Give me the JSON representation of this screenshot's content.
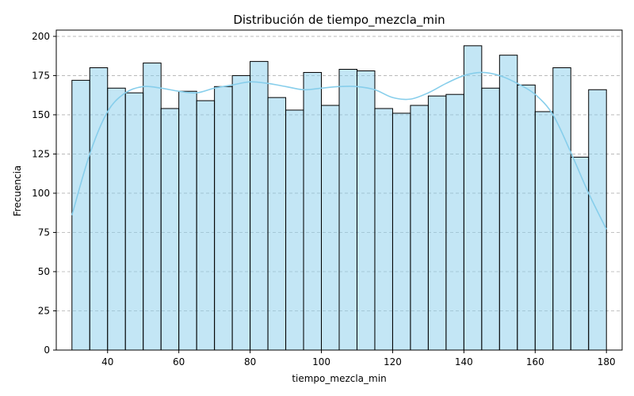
{
  "chart_data": {
    "type": "bar",
    "subtype": "histogram-with-kde",
    "title": "Distribución de tiempo_mezcla_min",
    "xlabel": "tiempo_mezcla_min",
    "ylabel": "Frecuencia",
    "xlim": [
      25.6,
      184.4
    ],
    "ylim": [
      0,
      204
    ],
    "x_ticks": [
      40,
      60,
      80,
      100,
      120,
      140,
      160,
      180
    ],
    "y_ticks": [
      0,
      25,
      50,
      75,
      100,
      125,
      150,
      175,
      200
    ],
    "grid": "y-dashed",
    "bin_width": 5,
    "bins": [
      {
        "x0": 30,
        "x1": 35,
        "count": 172
      },
      {
        "x0": 35,
        "x1": 40,
        "count": 180
      },
      {
        "x0": 40,
        "x1": 45,
        "count": 167
      },
      {
        "x0": 45,
        "x1": 50,
        "count": 164
      },
      {
        "x0": 50,
        "x1": 55,
        "count": 183
      },
      {
        "x0": 55,
        "x1": 60,
        "count": 154
      },
      {
        "x0": 60,
        "x1": 65,
        "count": 165
      },
      {
        "x0": 65,
        "x1": 70,
        "count": 159
      },
      {
        "x0": 70,
        "x1": 75,
        "count": 168
      },
      {
        "x0": 75,
        "x1": 80,
        "count": 175
      },
      {
        "x0": 80,
        "x1": 85,
        "count": 184
      },
      {
        "x0": 85,
        "x1": 90,
        "count": 161
      },
      {
        "x0": 90,
        "x1": 95,
        "count": 153
      },
      {
        "x0": 95,
        "x1": 100,
        "count": 177
      },
      {
        "x0": 100,
        "x1": 105,
        "count": 156
      },
      {
        "x0": 105,
        "x1": 110,
        "count": 179
      },
      {
        "x0": 110,
        "x1": 115,
        "count": 178
      },
      {
        "x0": 115,
        "x1": 120,
        "count": 154
      },
      {
        "x0": 120,
        "x1": 125,
        "count": 151
      },
      {
        "x0": 125,
        "x1": 130,
        "count": 156
      },
      {
        "x0": 130,
        "x1": 135,
        "count": 162
      },
      {
        "x0": 135,
        "x1": 140,
        "count": 163
      },
      {
        "x0": 140,
        "x1": 145,
        "count": 194
      },
      {
        "x0": 145,
        "x1": 150,
        "count": 167
      },
      {
        "x0": 150,
        "x1": 155,
        "count": 188
      },
      {
        "x0": 155,
        "x1": 160,
        "count": 169
      },
      {
        "x0": 160,
        "x1": 165,
        "count": 152
      },
      {
        "x0": 165,
        "x1": 170,
        "count": 180
      },
      {
        "x0": 170,
        "x1": 175,
        "count": 123
      },
      {
        "x0": 175,
        "x1": 180,
        "count": 166
      }
    ],
    "kde": {
      "x": [
        30,
        35,
        40,
        45,
        50,
        55,
        60,
        65,
        70,
        75,
        80,
        85,
        90,
        95,
        100,
        105,
        110,
        115,
        120,
        125,
        130,
        135,
        140,
        145,
        150,
        155,
        160,
        165,
        170,
        175,
        180
      ],
      "y": [
        86,
        125,
        152,
        164,
        168,
        167,
        165,
        164,
        167,
        169,
        171,
        170,
        168,
        166,
        167,
        168,
        168,
        166,
        161,
        160,
        164,
        170,
        175,
        177,
        175,
        170,
        163,
        150,
        126,
        100,
        77
      ]
    },
    "colors": {
      "bar_fill": "#87ceeb",
      "bar_fill_opacity": 0.5,
      "bar_edge": "#000000",
      "kde_line": "#87ceeb",
      "grid": "#b0b0b0"
    }
  }
}
